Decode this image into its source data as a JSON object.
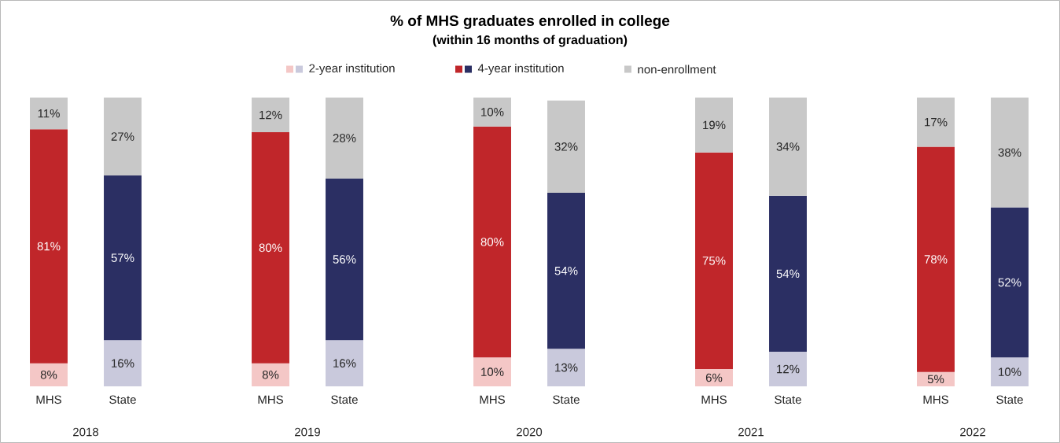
{
  "chart_data": {
    "type": "bar",
    "title": "% of MHS graduates enrolled in college",
    "subtitle": "(within 16 months of graduation)",
    "categories": [
      "MHS",
      "State",
      null,
      "MHS",
      "State",
      null,
      "MHS",
      "State",
      null,
      "MHS",
      "State",
      null,
      "MHS",
      "State"
    ],
    "stacked": true,
    "legend": "top",
    "series": [
      {
        "name": "2-year institution",
        "colors": [
          "#f4c7c6",
          "#c9c9dc",
          null,
          "#f4c7c6",
          "#c9c9dc",
          null,
          "#f4c7c6",
          "#c9c9dc",
          null,
          "#f4c7c6",
          "#c9c9dc",
          null,
          "#f4c7c6",
          "#c9c9dc"
        ],
        "values": [
          8,
          16,
          null,
          8,
          16,
          null,
          10,
          13,
          null,
          6,
          12,
          null,
          5,
          10
        ],
        "value_labels": [
          "8%",
          "16%",
          null,
          "8%",
          "16%",
          null,
          "10%",
          "13%",
          null,
          "6%",
          "12%",
          null,
          "5%",
          "10%"
        ]
      },
      {
        "name": "4-year institution",
        "colors": [
          "#c0262a",
          "#2b2f63",
          null,
          "#c0262a",
          "#2b2f63",
          null,
          "#c0262a",
          "#2b2f63",
          null,
          "#c0262a",
          "#2b2f63",
          null,
          "#c0262a",
          "#2b2f63"
        ],
        "values": [
          81,
          57,
          null,
          80,
          56,
          null,
          80,
          54,
          null,
          75,
          54,
          null,
          78,
          52
        ],
        "value_labels": [
          "81%",
          "57%",
          null,
          "80%",
          "56%",
          null,
          "80%",
          "54%",
          null,
          "75%",
          "54%",
          null,
          "78%",
          "52%"
        ]
      },
      {
        "name": "non-enrollment",
        "colors": [
          "#c8c8c8",
          "#c8c8c8",
          null,
          "#c8c8c8",
          "#c8c8c8",
          null,
          "#c8c8c8",
          "#c8c8c8",
          null,
          "#c8c8c8",
          "#c8c8c8",
          null,
          "#c8c8c8",
          "#c8c8c8"
        ],
        "values": [
          11,
          27,
          null,
          12,
          28,
          null,
          10,
          32,
          null,
          19,
          34,
          null,
          17,
          38
        ],
        "value_labels": [
          "11%",
          "27%",
          null,
          "12%",
          "28%",
          null,
          "10%",
          "32%",
          null,
          "19%",
          "34%",
          null,
          "17%",
          "38%"
        ]
      }
    ],
    "annotations": [
      "2018",
      "2019",
      "2020",
      "2021",
      "2022"
    ]
  }
}
